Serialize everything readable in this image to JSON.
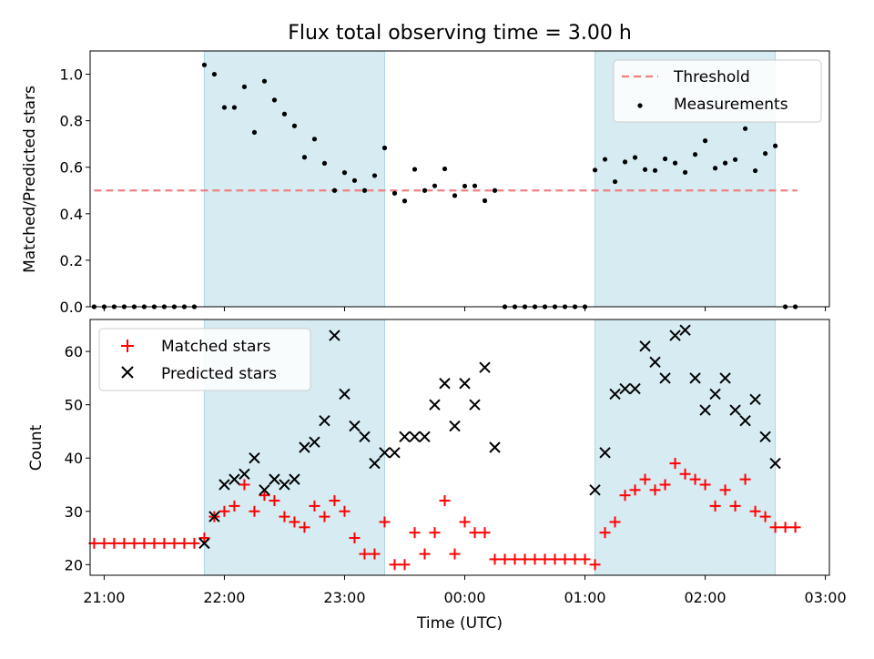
{
  "title": "Flux total observing time = 3.00 h",
  "xlabel": "Time (UTC)",
  "colors": {
    "threshold": "#f08080",
    "measurements": "#000000",
    "matched": "#ff0000",
    "predicted": "#000000",
    "shade": "#add8e6"
  },
  "chart_data": [
    {
      "type": "scatter",
      "name": "ratio-panel",
      "ylabel": "Matched/Predicted stars",
      "xlim": [
        "20:53",
        "03:02"
      ],
      "ylim": [
        0,
        1.1
      ],
      "yticks": [
        0.0,
        0.2,
        0.4,
        0.6,
        0.8,
        1.0
      ],
      "ytick_labels": [
        "0.0",
        "0.2",
        "0.4",
        "0.6",
        "0.8",
        "1.0"
      ],
      "shaded_intervals": [
        [
          "21:50",
          "23:20"
        ],
        [
          "01:05",
          "02:35"
        ]
      ],
      "legend": {
        "placement": "upper right",
        "entries": [
          "Threshold",
          "Measurements"
        ]
      },
      "series": [
        {
          "name": "Threshold",
          "kind": "dashed-line",
          "x": [
            "20:55",
            "02:46"
          ],
          "y": [
            0.5,
            0.5
          ]
        },
        {
          "name": "Measurements",
          "kind": "dots",
          "x": [
            "20:55",
            "21:00",
            "21:05",
            "21:10",
            "21:15",
            "21:20",
            "21:25",
            "21:30",
            "21:35",
            "21:40",
            "21:45",
            "21:50",
            "21:55",
            "22:00",
            "22:05",
            "22:10",
            "22:15",
            "22:20",
            "22:25",
            "22:30",
            "22:35",
            "22:40",
            "22:45",
            "22:50",
            "22:55",
            "23:00",
            "23:05",
            "23:10",
            "23:15",
            "23:20",
            "23:25",
            "23:30",
            "23:35",
            "23:40",
            "23:45",
            "23:50",
            "23:55",
            "00:00",
            "00:05",
            "00:10",
            "00:15",
            "00:20",
            "00:25",
            "00:30",
            "00:35",
            "00:40",
            "00:45",
            "00:50",
            "00:55",
            "01:00",
            "01:05",
            "01:10",
            "01:15",
            "01:20",
            "01:25",
            "01:30",
            "01:35",
            "01:40",
            "01:45",
            "01:50",
            "01:55",
            "02:00",
            "02:05",
            "02:10",
            "02:15",
            "02:20",
            "02:25",
            "02:30",
            "02:35",
            "02:40",
            "02:45"
          ],
          "y": [
            0,
            0,
            0,
            0,
            0,
            0,
            0,
            0,
            0,
            0,
            0,
            1.04,
            1.0,
            0.857,
            0.857,
            0.946,
            0.75,
            0.97,
            0.889,
            0.829,
            0.778,
            0.643,
            0.721,
            0.617,
            0.5,
            0.577,
            0.543,
            0.5,
            0.564,
            0.683,
            0.488,
            0.455,
            0.591,
            0.5,
            0.52,
            0.593,
            0.478,
            0.519,
            0.52,
            0.456,
            0.5,
            0,
            0,
            0,
            0,
            0,
            0,
            0,
            0,
            0,
            0.588,
            0.634,
            0.538,
            0.623,
            0.642,
            0.59,
            0.586,
            0.636,
            0.618,
            0.578,
            0.655,
            0.714,
            0.596,
            0.618,
            0.633,
            0.766,
            0.585,
            0.659,
            0.692,
            0,
            0
          ]
        }
      ]
    },
    {
      "type": "scatter",
      "name": "count-panel",
      "ylabel": "Count",
      "xlim": [
        "20:53",
        "03:02"
      ],
      "ylim": [
        18,
        66
      ],
      "yticks": [
        20,
        30,
        40,
        50,
        60
      ],
      "ytick_labels": [
        "20",
        "30",
        "40",
        "50",
        "60"
      ],
      "xticks": [
        "21:00",
        "22:00",
        "23:00",
        "00:00",
        "01:00",
        "02:00",
        "03:00"
      ],
      "xtick_labels": [
        "21:00",
        "22:00",
        "23:00",
        "00:00",
        "01:00",
        "02:00",
        "03:00"
      ],
      "shaded_intervals": [
        [
          "21:50",
          "23:20"
        ],
        [
          "01:05",
          "02:35"
        ]
      ],
      "legend": {
        "placement": "upper left",
        "entries": [
          "Matched stars",
          "Predicted stars"
        ]
      },
      "series": [
        {
          "name": "Matched stars",
          "kind": "plus",
          "x": [
            "20:55",
            "21:00",
            "21:05",
            "21:10",
            "21:15",
            "21:20",
            "21:25",
            "21:30",
            "21:35",
            "21:40",
            "21:45",
            "21:50",
            "21:55",
            "22:00",
            "22:05",
            "22:10",
            "22:15",
            "22:20",
            "22:25",
            "22:30",
            "22:35",
            "22:40",
            "22:45",
            "22:50",
            "22:55",
            "23:00",
            "23:05",
            "23:10",
            "23:15",
            "23:20",
            "23:25",
            "23:30",
            "23:35",
            "23:40",
            "23:45",
            "23:50",
            "23:55",
            "00:00",
            "00:05",
            "00:10",
            "00:15",
            "00:20",
            "00:25",
            "00:30",
            "00:35",
            "00:40",
            "00:45",
            "00:50",
            "00:55",
            "01:00",
            "01:05",
            "01:10",
            "01:15",
            "01:20",
            "01:25",
            "01:30",
            "01:35",
            "01:40",
            "01:45",
            "01:50",
            "01:55",
            "02:00",
            "02:05",
            "02:10",
            "02:15",
            "02:20",
            "02:25",
            "02:30",
            "02:35",
            "02:40",
            "02:45"
          ],
          "y": [
            24,
            24,
            24,
            24,
            24,
            24,
            24,
            24,
            24,
            24,
            24,
            25,
            29,
            30,
            31,
            35,
            30,
            33,
            32,
            29,
            28,
            27,
            31,
            29,
            32,
            30,
            25,
            22,
            22,
            28,
            20,
            20,
            26,
            22,
            26,
            32,
            22,
            28,
            26,
            26,
            21,
            21,
            21,
            21,
            21,
            21,
            21,
            21,
            21,
            21,
            20,
            26,
            28,
            33,
            34,
            36,
            34,
            35,
            39,
            37,
            36,
            35,
            31,
            34,
            31,
            36,
            30,
            29,
            27,
            27,
            27
          ]
        },
        {
          "name": "Predicted stars",
          "kind": "cross",
          "x": [
            "21:50",
            "21:55",
            "22:00",
            "22:05",
            "22:10",
            "22:15",
            "22:20",
            "22:25",
            "22:30",
            "22:35",
            "22:40",
            "22:45",
            "22:50",
            "22:55",
            "23:00",
            "23:05",
            "23:10",
            "23:15",
            "23:20",
            "23:25",
            "23:30",
            "23:35",
            "23:40",
            "23:45",
            "23:50",
            "23:55",
            "00:00",
            "00:05",
            "00:10",
            "00:15",
            "01:05",
            "01:10",
            "01:15",
            "01:20",
            "01:25",
            "01:30",
            "01:35",
            "01:40",
            "01:45",
            "01:50",
            "01:55",
            "02:00",
            "02:05",
            "02:10",
            "02:15",
            "02:20",
            "02:25",
            "02:30",
            "02:35"
          ],
          "y": [
            24,
            29,
            35,
            36,
            37,
            40,
            34,
            36,
            35,
            36,
            42,
            43,
            47,
            63,
            52,
            46,
            44,
            39,
            41,
            41,
            44,
            44,
            44,
            50,
            54,
            46,
            54,
            50,
            57,
            42,
            34,
            41,
            52,
            53,
            53,
            61,
            58,
            55,
            63,
            64,
            55,
            49,
            52,
            55,
            49,
            47,
            51,
            44,
            39
          ]
        }
      ]
    }
  ]
}
